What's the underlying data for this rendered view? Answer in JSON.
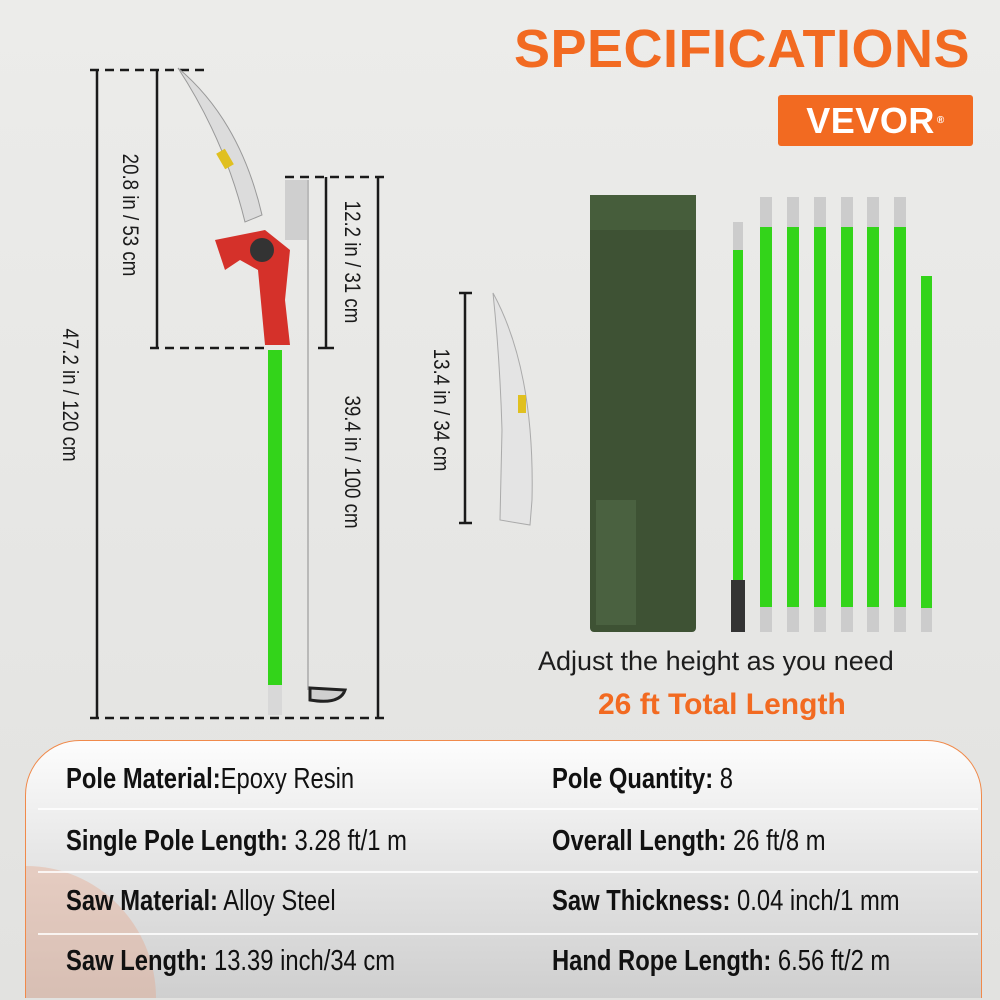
{
  "header": {
    "title": "SPECIFICATIONS",
    "brand": "VEVOR",
    "brand_mark": "®"
  },
  "colors": {
    "accent": "#f26a21",
    "pole_green": "#33d41a",
    "bag_green": "#3e5234"
  },
  "dimensions": {
    "total_length": "47.2 in /  120 cm",
    "saw_head": "20.8 in / 53 cm",
    "pruner_head": "12.2 in / 31 cm",
    "pole": "39.4 in / 100 cm",
    "saw": "13.4 in / 34 cm"
  },
  "kit": {
    "adjust_text": "Adjust the height as you need",
    "total_text": "26 ft Total Length"
  },
  "specs": [
    {
      "label": "Pole Material:",
      "value": "Epoxy Resin"
    },
    {
      "label": "Pole Quantity:",
      "value": " 8"
    },
    {
      "label": "Single Pole Length:",
      "value": " 3.28 ft/1 m"
    },
    {
      "label": "Overall Length:",
      "value": " 26 ft/8 m"
    },
    {
      "label": "Saw Material:",
      "value": " Alloy Steel"
    },
    {
      "label": "Saw Thickness:",
      "value": " 0.04 inch/1 mm"
    },
    {
      "label": "Saw Length:",
      "value": " 13.39 inch/34 cm"
    },
    {
      "label": "Hand Rope Length:",
      "value": " 6.56 ft/2 m"
    }
  ]
}
